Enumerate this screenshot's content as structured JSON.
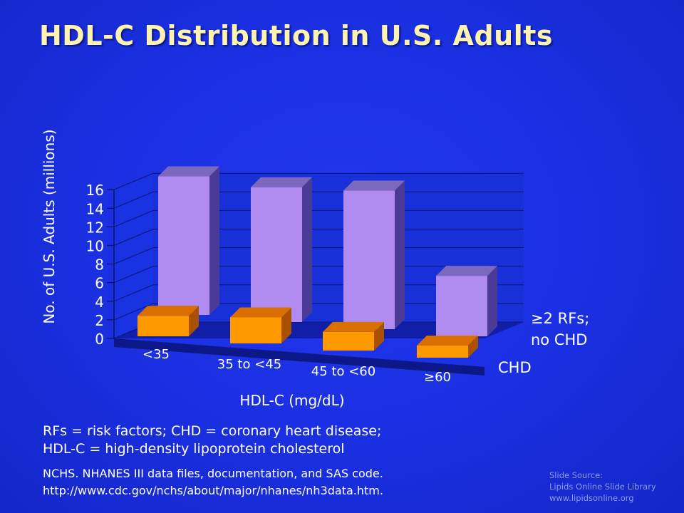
{
  "slide": {
    "title": "HDL-C Distribution in U.S. Adults",
    "abbreviations": [
      "RFs = risk factors; CHD = coronary heart disease;",
      "HDL-C = high-density lipoprotein cholesterol"
    ],
    "citation": [
      "NCHS. NHANES III data files, documentation, and SAS code.",
      "http://www.cdc.gov/nchs/about/major/nhanes/nh3data.htm."
    ],
    "source": [
      "Slide Source:",
      "Lipids Online Slide Library",
      "www.lipidsonline.org"
    ]
  },
  "colors": {
    "background": "#1a2fe0",
    "title": "#fff3b0",
    "series_back": "#b08cf0",
    "series_front": "#ff9900"
  },
  "chart_data": {
    "type": "bar",
    "style": "3d-clustered-depth",
    "categories": [
      "<35",
      "35 to <45",
      "45 to <60",
      "≥60"
    ],
    "series": [
      {
        "name": "≥2 RFs; no CHD",
        "values": [
          14.9,
          14.5,
          14.9,
          6.5
        ]
      },
      {
        "name": "CHD",
        "values": [
          2.2,
          2.8,
          2.0,
          1.3
        ]
      }
    ],
    "xlabel": "HDL-C (mg/dL)",
    "ylabel": "No. of U.S. Adults (millions)",
    "ylim": [
      0,
      16
    ],
    "yticks": [
      0,
      2,
      4,
      6,
      8,
      10,
      12,
      14,
      16
    ],
    "grid": true
  }
}
